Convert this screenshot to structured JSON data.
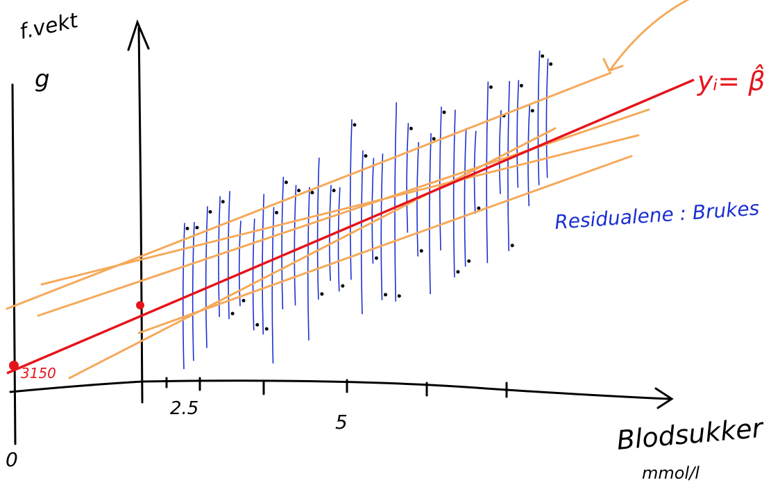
{
  "labels": {
    "y_axis": "f.vekt",
    "y_unit": "g",
    "model": "yᵢ= β̂",
    "residuals": "Residualene : Brukes",
    "x_tick_1": "2.5",
    "x_tick_2": "5",
    "origin": "0",
    "x_axis": "Blodsukker",
    "x_unit": "mmol/l",
    "intercept": "3150"
  }
}
